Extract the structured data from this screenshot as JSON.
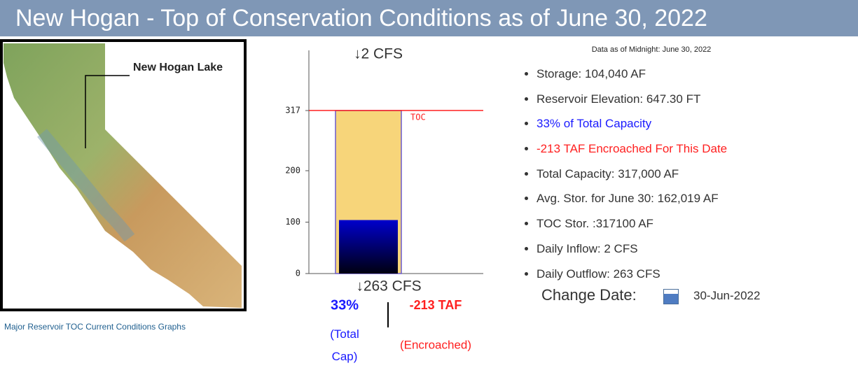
{
  "header": {
    "title": "New Hogan - Top of Conservation Conditions as of June 30, 2022"
  },
  "map": {
    "label": "New Hogan Lake",
    "caption": "Major Reservoir TOC Current Conditions Graphs"
  },
  "chart_data": {
    "type": "bar",
    "ylim": [
      0,
      434
    ],
    "yticks": [
      0,
      100,
      200,
      317
    ],
    "bars": [
      {
        "value": 317,
        "color": "#f7d57a"
      },
      {
        "value": 104.04,
        "color": "#0000cc"
      }
    ],
    "toc": {
      "value": 317.1,
      "label": "TOC",
      "color": "#ff2020"
    },
    "inflow": "↓2 CFS",
    "outflow": "↓263 CFS",
    "pct": "33%",
    "pct_note": "(Total Cap)",
    "encroached": "-213 TAF",
    "encroached_note": "(Encroached)"
  },
  "info": {
    "as_of": "Data as of Midnight: June 30, 2022",
    "items": [
      {
        "text": "Storage: 104,040 AF",
        "color": "#333333"
      },
      {
        "text": "Reservoir Elevation: 647.30 FT",
        "color": "#333333"
      },
      {
        "text": "33% of Total Capacity",
        "color": "#1a1aff"
      },
      {
        "text": "-213 TAF Encroached For This Date",
        "color": "#ff2020"
      },
      {
        "text": "Total Capacity: 317,000 AF",
        "color": "#333333"
      },
      {
        "text": "Avg. Stor. for June 30: 162,019 AF",
        "color": "#333333"
      },
      {
        "text": "TOC Stor. :317100 AF",
        "color": "#333333"
      },
      {
        "text": "Daily Inflow: 2 CFS",
        "color": "#333333"
      },
      {
        "text": "Daily Outflow: 263 CFS",
        "color": "#333333"
      }
    ],
    "change_label": "Change Date:",
    "date": "30-Jun-2022"
  }
}
